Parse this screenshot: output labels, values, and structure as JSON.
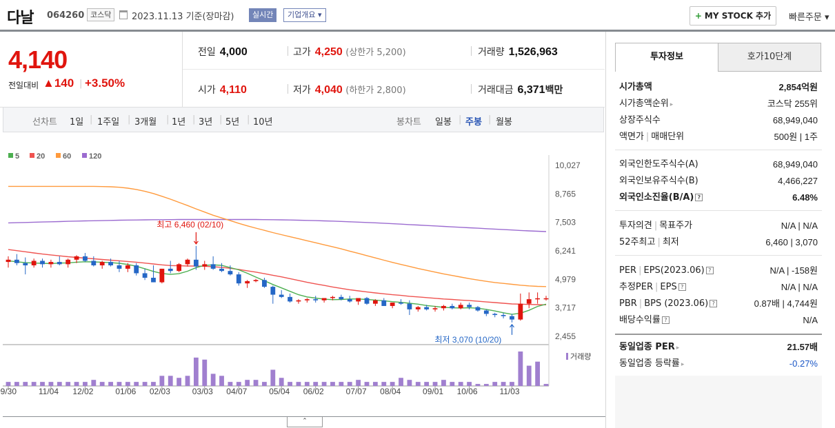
{
  "header": {
    "name": "다날",
    "code": "064260",
    "market": "코스닥",
    "date": "2023.11.13  기준(장마감)",
    "realtime_label": "실시간",
    "overview_label": "기업개요 ▾",
    "mystock_label": "MY STOCK 추가",
    "quick_order_label": "빠른주문 ▾"
  },
  "price": {
    "current": "4,140",
    "change_label": "전일대비",
    "change": "▲140",
    "change_pct": "+3.50%"
  },
  "stats": {
    "prev_label": "전일",
    "prev": "4,000",
    "high_label": "고가",
    "high": "4,250",
    "high_sub": "(상한가 5,200)",
    "volume_label": "거래량",
    "volume": "1,526,963",
    "open_label": "시가",
    "open": "4,110",
    "low_label": "저가",
    "low": "4,040",
    "low_sub": "(하한가 2,800)",
    "amount_label": "거래대금",
    "amount": "6,371",
    "amount_unit": "백만"
  },
  "period_bar": {
    "line_title": "선차트",
    "line_periods": [
      "1일",
      "1주일",
      "3개월",
      "1년",
      "3년",
      "5년",
      "10년"
    ],
    "candle_title": "봉차트",
    "candle_periods": [
      "일봉",
      "주봉",
      "월봉"
    ],
    "candle_selected": "주봉"
  },
  "chart_data": {
    "type": "candlestick",
    "legend": [
      {
        "name": "5",
        "color": "#4caf50"
      },
      {
        "name": "20",
        "color": "#ef5350"
      },
      {
        "name": "60",
        "color": "#ff9a3c"
      },
      {
        "name": "120",
        "color": "#9b6bd0"
      }
    ],
    "y_ticks": [
      "10,027",
      "8,765",
      "7,503",
      "6,241",
      "4,979",
      "3,717",
      "2,455"
    ],
    "ylim": [
      2455,
      10027
    ],
    "x_ticks": [
      "09/30",
      "11/04",
      "12/02",
      "01/06",
      "02/03",
      "03/03",
      "04/07",
      "05/04",
      "06/02",
      "07/07",
      "08/04",
      "09/01",
      "10/06",
      "11/03"
    ],
    "annotation_high": "최고 6,460 (02/10)",
    "annotation_low": "최저 3,070 (10/20)",
    "volume_label": "거래량",
    "ohlc": [
      [
        5750,
        6000,
        5500,
        5850
      ],
      [
        5850,
        6100,
        5600,
        5700
      ],
      [
        5700,
        5950,
        5200,
        5600
      ],
      [
        5600,
        5900,
        5500,
        5800
      ],
      [
        5800,
        5900,
        5500,
        5650
      ],
      [
        5650,
        5850,
        5500,
        5750
      ],
      [
        5750,
        6000,
        5600,
        5650
      ],
      [
        5650,
        5900,
        5500,
        5850
      ],
      [
        5850,
        6050,
        5700,
        6000
      ],
      [
        6000,
        6150,
        5750,
        5800
      ],
      [
        5800,
        6000,
        5550,
        5600
      ],
      [
        5600,
        5800,
        5450,
        5750
      ],
      [
        5750,
        5900,
        5550,
        5600
      ],
      [
        5600,
        5800,
        5300,
        5450
      ],
      [
        5450,
        5700,
        5300,
        5600
      ],
      [
        5600,
        5700,
        5150,
        5250
      ],
      [
        5250,
        5450,
        4950,
        5050
      ],
      [
        5050,
        5600,
        4850,
        4850
      ],
      [
        4850,
        5450,
        4800,
        5450
      ],
      [
        5450,
        5800,
        5250,
        5350
      ],
      [
        5350,
        5700,
        5300,
        5650
      ],
      [
        5650,
        5900,
        5550,
        5850
      ],
      [
        5850,
        6460,
        5400,
        5550
      ],
      [
        5550,
        5800,
        5400,
        5650
      ],
      [
        5650,
        6000,
        5400,
        5450
      ],
      [
        5450,
        5700,
        5300,
        5350
      ],
      [
        5350,
        5600,
        5150,
        5200
      ],
      [
        5200,
        5300,
        4700,
        4800
      ],
      [
        4800,
        4950,
        4600,
        4900
      ],
      [
        4900,
        5000,
        4850,
        4950
      ],
      [
        4950,
        5050,
        4600,
        4650
      ],
      [
        4650,
        4700,
        3900,
        4300
      ],
      [
        4300,
        4500,
        4150,
        4200
      ],
      [
        4200,
        4350,
        3950,
        4000
      ],
      [
        4000,
        4100,
        3900,
        4050
      ],
      [
        4050,
        4150,
        3950,
        4100
      ],
      [
        4100,
        4250,
        3950,
        4050
      ],
      [
        4050,
        4150,
        3950,
        4150
      ],
      [
        4150,
        4250,
        4050,
        4200
      ],
      [
        4200,
        4300,
        4050,
        4100
      ],
      [
        4100,
        4250,
        3950,
        4000
      ],
      [
        4000,
        4150,
        3850,
        4150
      ],
      [
        4150,
        4200,
        3850,
        3900
      ],
      [
        3900,
        4100,
        3800,
        4050
      ],
      [
        4050,
        4150,
        3800,
        3800
      ],
      [
        3800,
        3950,
        3700,
        3950
      ],
      [
        3950,
        4100,
        3850,
        3900
      ],
      [
        3900,
        4050,
        3400,
        3650
      ],
      [
        3650,
        3800,
        3550,
        3750
      ],
      [
        3750,
        3850,
        3600,
        3650
      ],
      [
        3650,
        3800,
        3550,
        3700
      ],
      [
        3700,
        3850,
        3600,
        3800
      ],
      [
        3800,
        3900,
        3650,
        3700
      ],
      [
        3700,
        3950,
        3650,
        3850
      ],
      [
        3850,
        3950,
        3650,
        3750
      ],
      [
        3750,
        3800,
        3550,
        3600
      ],
      [
        3600,
        3650,
        3350,
        3450
      ],
      [
        3450,
        3500,
        3300,
        3400
      ],
      [
        3400,
        3500,
        3250,
        3350
      ],
      [
        3350,
        3450,
        3070,
        3200
      ],
      [
        3200,
        4350,
        3150,
        3900
      ],
      [
        3900,
        4400,
        3700,
        4100
      ],
      [
        4100,
        4400,
        3900,
        4140
      ],
      [
        4140,
        4250,
        4040,
        4140
      ]
    ],
    "ma5": [
      5800,
      5760,
      5720,
      5700,
      5690,
      5680,
      5700,
      5710,
      5740,
      5760,
      5750,
      5740,
      5720,
      5690,
      5640,
      5560,
      5450,
      5330,
      5240,
      5200,
      5230,
      5340,
      5500,
      5600,
      5620,
      5600,
      5500,
      5400,
      5250,
      5080,
      4920,
      4750,
      4600,
      4450,
      4300,
      4200,
      4150,
      4100,
      4080,
      4090,
      4110,
      4110,
      4090,
      4060,
      4030,
      3990,
      3960,
      3920,
      3880,
      3820,
      3780,
      3740,
      3720,
      3710,
      3720,
      3700,
      3650,
      3580,
      3500,
      3430,
      3480,
      3610,
      3780,
      3880
    ],
    "ma20": [
      6300,
      6250,
      6200,
      6150,
      6100,
      6060,
      6020,
      5980,
      5950,
      5920,
      5890,
      5860,
      5830,
      5800,
      5770,
      5740,
      5700,
      5660,
      5620,
      5590,
      5580,
      5570,
      5570,
      5560,
      5540,
      5510,
      5470,
      5420,
      5360,
      5300,
      5230,
      5160,
      5090,
      5010,
      4930,
      4850,
      4780,
      4710,
      4640,
      4580,
      4520,
      4470,
      4420,
      4380,
      4340,
      4300,
      4270,
      4230,
      4200,
      4170,
      4140,
      4110,
      4090,
      4060,
      4040,
      4010,
      3980,
      3950,
      3920,
      3890,
      3880,
      3870,
      3860,
      3850
    ],
    "ma60": [
      9100,
      9100,
      9100,
      9100,
      9100,
      9100,
      9100,
      9100,
      9100,
      9100,
      9100,
      9090,
      9080,
      9060,
      9020,
      8960,
      8880,
      8780,
      8660,
      8530,
      8390,
      8250,
      8100,
      7960,
      7820,
      7700,
      7580,
      7460,
      7350,
      7250,
      7150,
      7050,
      6960,
      6870,
      6780,
      6690,
      6600,
      6510,
      6420,
      6330,
      6230,
      6130,
      6030,
      5930,
      5830,
      5730,
      5640,
      5550,
      5460,
      5380,
      5300,
      5220,
      5150,
      5080,
      5010,
      4950,
      4890,
      4840,
      4800,
      4760,
      4720,
      4690,
      4670,
      4660
    ],
    "ma120": [
      7480,
      7490,
      7500,
      7510,
      7520,
      7530,
      7540,
      7550,
      7560,
      7570,
      7575,
      7580,
      7590,
      7600,
      7605,
      7610,
      7615,
      7620,
      7620,
      7625,
      7630,
      7630,
      7630,
      7630,
      7630,
      7630,
      7630,
      7630,
      7630,
      7630,
      7625,
      7620,
      7615,
      7610,
      7600,
      7590,
      7580,
      7570,
      7560,
      7545,
      7530,
      7515,
      7500,
      7485,
      7465,
      7445,
      7425,
      7405,
      7385,
      7365,
      7345,
      7325,
      7305,
      7285,
      7265,
      7245,
      7225,
      7205,
      7185,
      7165,
      7145,
      7125,
      7110,
      7095
    ],
    "volume": [
      2,
      2,
      2,
      2,
      2,
      2,
      2,
      2,
      2,
      2,
      3,
      2,
      2,
      2,
      2,
      2,
      2,
      2,
      5,
      5,
      4,
      5,
      14,
      13,
      6,
      5,
      2,
      2,
      3,
      3,
      2,
      8,
      4,
      2,
      2,
      2,
      2,
      2,
      2,
      2,
      2,
      3,
      2,
      2,
      2,
      2,
      4,
      3,
      2,
      2,
      2,
      3,
      2,
      2,
      2,
      1,
      1,
      2,
      2,
      2,
      17,
      10,
      12,
      1
    ]
  },
  "tabs": {
    "active": "투자정보",
    "inactive": "호가10단계"
  },
  "info": {
    "market_cap_label": "시가총액",
    "market_cap": "2,854억원",
    "rank_label": "시가총액순위",
    "rank": "코스닥 255위",
    "shares_label": "상장주식수",
    "shares": "68,949,040",
    "face_label": "액면가",
    "unit_label": "매매단위",
    "face_unit": "500원  |  1주",
    "foreign_limit_label": "외국인한도주식수(A)",
    "foreign_limit": "68,949,040",
    "foreign_hold_label": "외국인보유주식수(B)",
    "foreign_hold": "4,466,227",
    "foreign_ratio_label": "외국인소진율(B/A)",
    "foreign_ratio": "6.48%",
    "opinion_label": "투자의견",
    "target_label": "목표주가",
    "opinion_target": "N/A  |  N/A",
    "w52_label": "52주최고",
    "w52_low_label": "최저",
    "w52": "6,460  |  3,070",
    "per_label": "PER",
    "eps_label": "EPS(2023.06)",
    "per_eps": "N/A  |  -158원",
    "est_per_label": "추정PER",
    "est_eps_label": "EPS",
    "est_per_eps": "N/A  |  N/A",
    "pbr_label": "PBR",
    "bps_label": "BPS (2023.06)",
    "pbr_bps": "0.87배  |  4,744원",
    "div_label": "배당수익률",
    "div": "N/A",
    "sector_per_label": "동일업종 PER",
    "sector_per": "21.57배",
    "sector_chg_label": "동일업종 등락률",
    "sector_chg": "-0.27%"
  },
  "toggle_label": "⌃"
}
